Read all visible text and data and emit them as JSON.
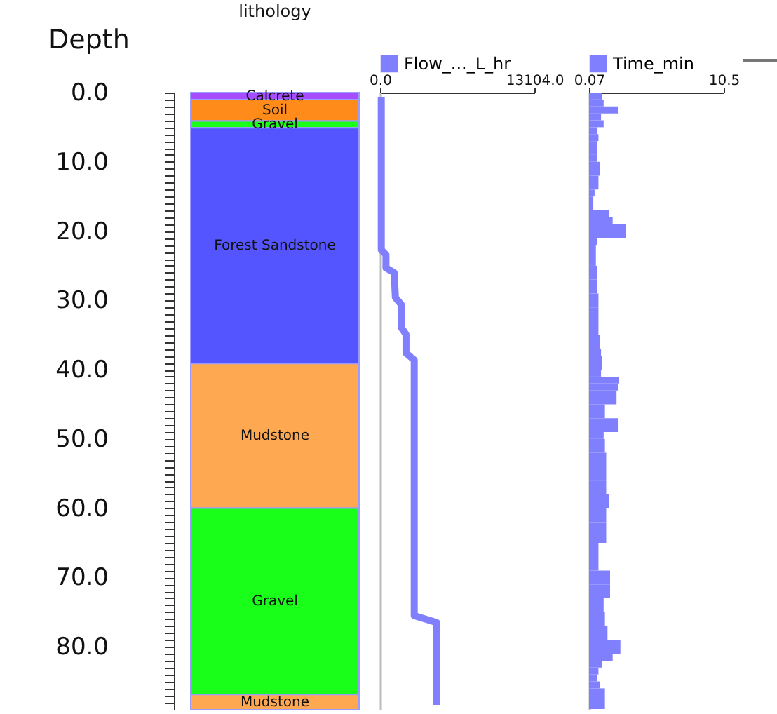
{
  "chart_data": [
    {
      "type": "bar",
      "stacked": true,
      "title": "lithology",
      "ylabel": "Depth",
      "categories": [
        null
      ],
      "series": [
        {
          "name": "Calcrete",
          "color": "#a64dff",
          "values": [
            1.0
          ]
        },
        {
          "name": "Soil",
          "color": "#ff8c1a",
          "values": [
            3.1
          ]
        },
        {
          "name": "Gravel",
          "color": "#1aff1a",
          "values": [
            1.0
          ]
        },
        {
          "name": "Forest Sandstone",
          "color": "#5555ff",
          "values": [
            34.0
          ]
        },
        {
          "name": "Mudstone",
          "color": "#ffa852",
          "values": [
            20.9
          ]
        },
        {
          "name": "Gravel",
          "color": "#1aff1a",
          "values": [
            26.9
          ]
        },
        {
          "name": "Mudstone",
          "color": "#ffa852",
          "values": [
            2.2
          ]
        }
      ],
      "ylim": [
        89.1,
        0
      ],
      "yticks": [
        {
          "value": 0,
          "label": "0.0"
        },
        {
          "value": 1,
          "label": null
        },
        {
          "value": 2,
          "label": null
        },
        {
          "value": 3,
          "label": null
        },
        {
          "value": 4,
          "label": null
        },
        {
          "value": 5,
          "label": null
        },
        {
          "value": 6,
          "label": null
        },
        {
          "value": 7,
          "label": null
        },
        {
          "value": 8,
          "label": null
        },
        {
          "value": 9,
          "label": null
        },
        {
          "value": 10,
          "label": "10.0"
        },
        {
          "value": 11,
          "label": null
        },
        {
          "value": 12,
          "label": null
        },
        {
          "value": 13,
          "label": null
        },
        {
          "value": 14,
          "label": null
        },
        {
          "value": 15,
          "label": null
        },
        {
          "value": 16,
          "label": null
        },
        {
          "value": 17,
          "label": null
        },
        {
          "value": 18,
          "label": null
        },
        {
          "value": 19,
          "label": null
        },
        {
          "value": 20,
          "label": "20.0"
        },
        {
          "value": 21,
          "label": null
        },
        {
          "value": 22,
          "label": null
        },
        {
          "value": 23,
          "label": null
        },
        {
          "value": 24,
          "label": null
        },
        {
          "value": 25,
          "label": null
        },
        {
          "value": 26,
          "label": null
        },
        {
          "value": 27,
          "label": null
        },
        {
          "value": 28,
          "label": null
        },
        {
          "value": 29,
          "label": null
        },
        {
          "value": 30,
          "label": "30.0"
        },
        {
          "value": 31,
          "label": null
        },
        {
          "value": 32,
          "label": null
        },
        {
          "value": 33,
          "label": null
        },
        {
          "value": 34,
          "label": null
        },
        {
          "value": 35,
          "label": null
        },
        {
          "value": 36,
          "label": null
        },
        {
          "value": 37,
          "label": null
        },
        {
          "value": 38,
          "label": null
        },
        {
          "value": 39,
          "label": null
        },
        {
          "value": 40,
          "label": "40.0"
        },
        {
          "value": 41,
          "label": null
        },
        {
          "value": 42,
          "label": null
        },
        {
          "value": 43,
          "label": null
        },
        {
          "value": 44,
          "label": null
        },
        {
          "value": 45,
          "label": null
        },
        {
          "value": 46,
          "label": null
        },
        {
          "value": 47,
          "label": null
        },
        {
          "value": 48,
          "label": null
        },
        {
          "value": 49,
          "label": null
        },
        {
          "value": 50,
          "label": "50.0"
        },
        {
          "value": 51,
          "label": null
        },
        {
          "value": 52,
          "label": null
        },
        {
          "value": 53,
          "label": null
        },
        {
          "value": 54,
          "label": null
        },
        {
          "value": 55,
          "label": null
        },
        {
          "value": 56,
          "label": null
        },
        {
          "value": 57,
          "label": null
        },
        {
          "value": 58,
          "label": null
        },
        {
          "value": 59,
          "label": null
        },
        {
          "value": 60,
          "label": "60.0"
        },
        {
          "value": 61,
          "label": null
        },
        {
          "value": 62,
          "label": null
        },
        {
          "value": 63,
          "label": null
        },
        {
          "value": 64,
          "label": null
        },
        {
          "value": 65,
          "label": null
        },
        {
          "value": 66,
          "label": null
        },
        {
          "value": 67,
          "label": null
        },
        {
          "value": 68,
          "label": null
        },
        {
          "value": 69,
          "label": null
        },
        {
          "value": 70,
          "label": "70.0"
        },
        {
          "value": 71,
          "label": null
        },
        {
          "value": 72,
          "label": null
        },
        {
          "value": 73,
          "label": null
        },
        {
          "value": 74,
          "label": null
        },
        {
          "value": 75,
          "label": null
        },
        {
          "value": 76,
          "label": null
        },
        {
          "value": 77,
          "label": null
        },
        {
          "value": 78,
          "label": null
        },
        {
          "value": 79,
          "label": null
        },
        {
          "value": 80,
          "label": "80.0"
        },
        {
          "value": 81,
          "label": null
        },
        {
          "value": 82,
          "label": null
        },
        {
          "value": 83,
          "label": null
        },
        {
          "value": 84,
          "label": null
        },
        {
          "value": 85,
          "label": null
        },
        {
          "value": 86,
          "label": null
        },
        {
          "value": 87,
          "label": null
        },
        {
          "value": 88,
          "label": null
        }
      ]
    },
    {
      "type": "line",
      "orientation": "horizontal",
      "tick_labels": "x",
      "legend": "top",
      "series": [
        {
          "name": "Flow_..._L_hr",
          "color": "#8080ff",
          "x": [
            0.6,
            22.7,
            23.4,
            25.3,
            26.0,
            29.6,
            30.6,
            33.9,
            34.9,
            37.6,
            38.6,
            75.5,
            76.5,
            88.4
          ],
          "values": [
            100,
            100,
            500,
            500,
            1200,
            1300,
            1800,
            1800,
            2200,
            2200,
            2900,
            2900,
            4800,
            4800
          ]
        }
      ],
      "xlim": [
        0,
        13104
      ],
      "xticks": [
        {
          "value": 0,
          "label": "0.0"
        },
        {
          "value": 13104,
          "label": "13104.0"
        }
      ],
      "ylim": [
        89.1,
        0
      ]
    },
    {
      "type": "histogram",
      "orientation": "horizontal",
      "tick_labels": "x",
      "legend": "top",
      "bins": [
        0,
        1,
        2,
        3,
        4,
        5,
        6,
        7,
        9,
        10,
        12,
        14,
        15,
        17,
        18,
        19,
        21,
        22,
        23,
        25,
        27,
        29,
        31,
        33,
        35,
        37,
        38,
        40,
        41,
        42,
        43,
        45,
        47,
        49,
        50,
        52,
        56,
        58,
        60,
        62,
        65,
        69,
        71,
        73,
        75,
        77,
        79,
        81,
        82,
        83,
        84,
        85,
        86,
        89
      ],
      "series": [
        {
          "name": "Time_min",
          "color": "#8080ff",
          "values": [
            1.1,
            1.2,
            2.3,
            1.0,
            1.2,
            0.7,
            0.8,
            0.7,
            0.7,
            0.9,
            0.8,
            0.5,
            0.4,
            1.6,
            1.9,
            2.9,
            0.7,
            0.6,
            0.6,
            0.7,
            0.7,
            0.8,
            0.8,
            0.8,
            0.9,
            1.0,
            1.1,
            1.0,
            2.4,
            2.3,
            2.2,
            1.3,
            2.3,
            1.2,
            1.3,
            1.4,
            1.4,
            1.6,
            1.4,
            1.4,
            0.8,
            1.7,
            1.7,
            1.2,
            1.3,
            1.5,
            2.5,
            1.9,
            1.1,
            0.8,
            0.7,
            0.9,
            1.3
          ]
        }
      ],
      "xlim": [
        0.07,
        10.5
      ],
      "xticks": [
        0.07,
        10.5
      ],
      "ylim": [
        89.1,
        0
      ]
    }
  ]
}
